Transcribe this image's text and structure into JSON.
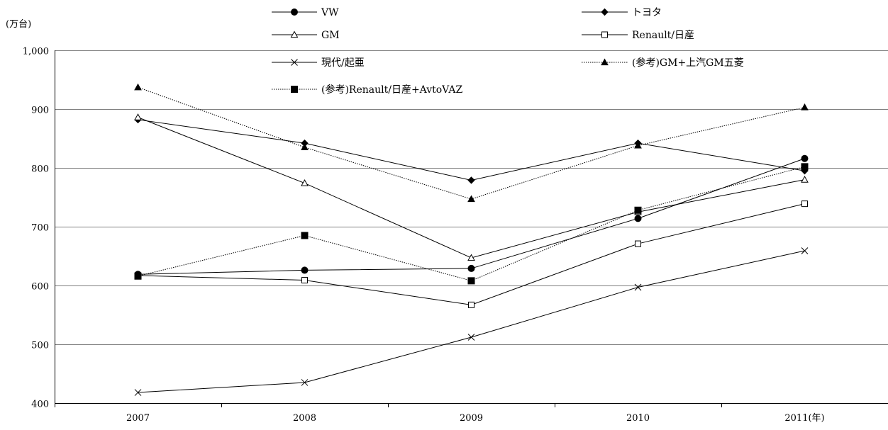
{
  "chart_data": {
    "type": "line",
    "ylabel": "(万台)",
    "ylim": [
      400,
      1000
    ],
    "yticks": [
      "400",
      "500",
      "600",
      "700",
      "800",
      "900",
      "1,000"
    ],
    "ytick_values": [
      400,
      500,
      600,
      700,
      800,
      900,
      1000
    ],
    "categories": [
      "2007",
      "2008",
      "2009",
      "2010",
      "2011(年)"
    ],
    "grid": true,
    "legend_position": "top",
    "series": [
      {
        "name": "VW",
        "values": [
          619,
          626,
          629,
          714,
          816
        ],
        "marker": "circle-filled",
        "line": "solid",
        "color": "#000000"
      },
      {
        "name": "トヨタ",
        "values": [
          882,
          842,
          779,
          842,
          795
        ],
        "marker": "diamond-filled",
        "line": "solid",
        "color": "#000000"
      },
      {
        "name": "GM",
        "values": [
          886,
          774,
          647,
          725,
          780
        ],
        "marker": "triangle-open",
        "line": "solid",
        "color": "#000000"
      },
      {
        "name": "Renault/日産",
        "values": [
          617,
          609,
          567,
          671,
          739
        ],
        "marker": "square-open",
        "line": "solid",
        "color": "#000000"
      },
      {
        "name": "現代/起亜",
        "values": [
          418,
          435,
          512,
          597,
          659
        ],
        "marker": "cross",
        "line": "solid",
        "color": "#000000"
      },
      {
        "name": "(参考)GM+上汽GM五菱",
        "values": [
          937,
          835,
          747,
          838,
          903
        ],
        "marker": "triangle-filled",
        "line": "dotted",
        "color": "#000000"
      },
      {
        "name": "(参考)Renault/日産+AvtoVAZ",
        "values": [
          616,
          685,
          608,
          728,
          802
        ],
        "marker": "square-filled",
        "line": "dotted",
        "color": "#000000"
      }
    ]
  }
}
